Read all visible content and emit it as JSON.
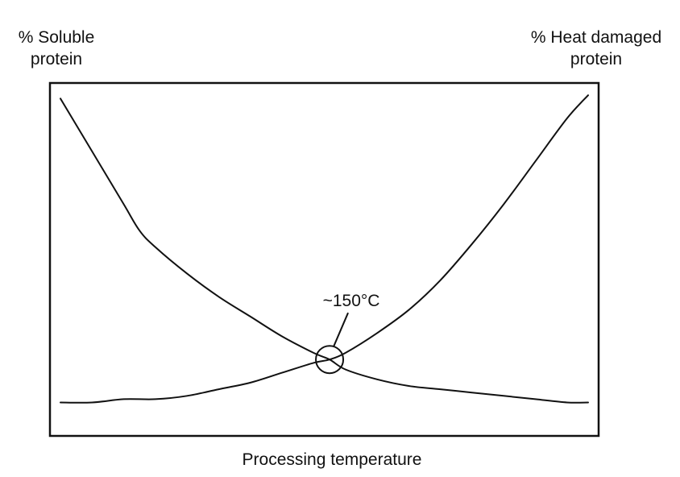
{
  "chart_data": {
    "type": "line",
    "title": "",
    "xlabel": "Processing temperature",
    "ylabel_left": [
      "% Soluble",
      "protein"
    ],
    "ylabel_right": [
      "% Heat damaged",
      "protein"
    ],
    "grid": false,
    "legend": "none",
    "xlim": [
      0,
      100
    ],
    "ylim": [
      0,
      100
    ],
    "series": [
      {
        "x": [
          0,
          6,
          12,
          15,
          18,
          24,
          30,
          36,
          42,
          48,
          51,
          54,
          60,
          66,
          72,
          78,
          84,
          90,
          96,
          100
        ],
        "values": [
          97,
          81,
          65,
          57,
          52,
          44,
          37,
          31,
          25,
          20,
          18,
          15,
          12,
          10,
          9,
          8,
          7,
          6,
          5,
          5
        ]
      },
      {
        "x": [
          0,
          6,
          12,
          18,
          24,
          30,
          36,
          42,
          48,
          51,
          54,
          60,
          66,
          72,
          78,
          84,
          90,
          96,
          100
        ],
        "values": [
          5,
          5,
          6,
          6,
          7,
          9,
          11,
          14,
          17,
          18,
          20,
          26,
          33,
          42,
          53,
          65,
          78,
          91,
          98
        ]
      }
    ],
    "annotations": [
      {
        "text": "~150°C",
        "x": 51,
        "y": 18
      }
    ]
  },
  "colors": {
    "line": "#111111",
    "background": "#ffffff"
  }
}
